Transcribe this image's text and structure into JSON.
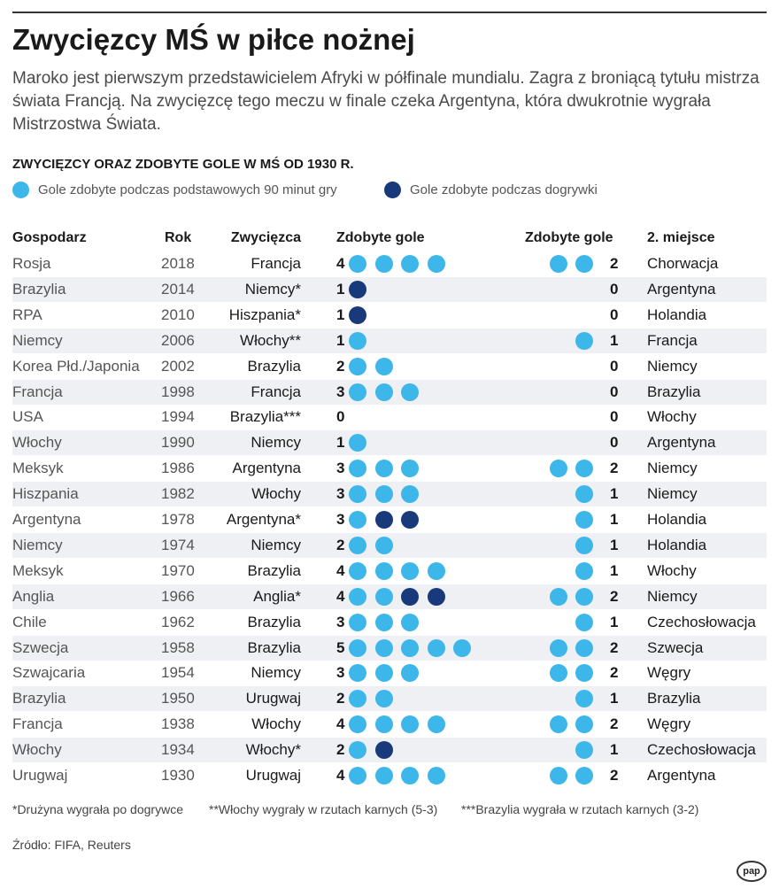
{
  "title": "Zwycięzcy MŚ w piłce nożnej",
  "intro": "Maroko jest pierwszym przedstawicielem Afryki w półfinale mundialu. Zagra z broniącą tytułu mistrza świata Francją. Na zwycięzcę tego meczu w finale czeka Argentyna, która dwukrotnie wygrała Mistrzostwa Świata.",
  "subtitle": "ZWYCIĘZCY ORAZ ZDOBYTE GOLE W MŚ OD 1930 R.",
  "legend": {
    "regular_label": "Gole zdobyte podczas podstawowych 90 minut gry",
    "extra_label": "Gole zdobyte podczas dogrywki"
  },
  "colors": {
    "regular": "#3db7ea",
    "extra": "#183a7a",
    "row_alt": "#eef0f4"
  },
  "headers": {
    "host": "Gospodarz",
    "year": "Rok",
    "winner": "Zwycięzca",
    "winner_goals": "Zdobyte gole",
    "loser_goals": "Zdobyte gole",
    "second": "2. miejsce"
  },
  "rows": [
    {
      "host": "Rosja",
      "year": "2018",
      "winner": "Francja",
      "wg": "4",
      "w_reg": 4,
      "w_ext": 0,
      "lg": "2",
      "l_reg": 2,
      "l_ext": 0,
      "second": "Chorwacja"
    },
    {
      "host": "Brazylia",
      "year": "2014",
      "winner": "Niemcy*",
      "wg": "1",
      "w_reg": 0,
      "w_ext": 1,
      "lg": "0",
      "l_reg": 0,
      "l_ext": 0,
      "second": "Argentyna"
    },
    {
      "host": "RPA",
      "year": "2010",
      "winner": "Hiszpania*",
      "wg": "1",
      "w_reg": 0,
      "w_ext": 1,
      "lg": "0",
      "l_reg": 0,
      "l_ext": 0,
      "second": "Holandia"
    },
    {
      "host": "Niemcy",
      "year": "2006",
      "winner": "Włochy**",
      "wg": "1",
      "w_reg": 1,
      "w_ext": 0,
      "lg": "1",
      "l_reg": 1,
      "l_ext": 0,
      "second": "Francja"
    },
    {
      "host": "Korea Płd./Japonia",
      "year": "2002",
      "winner": "Brazylia",
      "wg": "2",
      "w_reg": 2,
      "w_ext": 0,
      "lg": "0",
      "l_reg": 0,
      "l_ext": 0,
      "second": "Niemcy"
    },
    {
      "host": "Francja",
      "year": "1998",
      "winner": "Francja",
      "wg": "3",
      "w_reg": 3,
      "w_ext": 0,
      "lg": "0",
      "l_reg": 0,
      "l_ext": 0,
      "second": "Brazylia"
    },
    {
      "host": "USA",
      "year": "1994",
      "winner": "Brazylia***",
      "wg": "0",
      "w_reg": 0,
      "w_ext": 0,
      "lg": "0",
      "l_reg": 0,
      "l_ext": 0,
      "second": "Włochy"
    },
    {
      "host": "Włochy",
      "year": "1990",
      "winner": "Niemcy",
      "wg": "1",
      "w_reg": 1,
      "w_ext": 0,
      "lg": "0",
      "l_reg": 0,
      "l_ext": 0,
      "second": "Argentyna"
    },
    {
      "host": "Meksyk",
      "year": "1986",
      "winner": "Argentyna",
      "wg": "3",
      "w_reg": 3,
      "w_ext": 0,
      "lg": "2",
      "l_reg": 2,
      "l_ext": 0,
      "second": "Niemcy"
    },
    {
      "host": "Hiszpania",
      "year": "1982",
      "winner": "Włochy",
      "wg": "3",
      "w_reg": 3,
      "w_ext": 0,
      "lg": "1",
      "l_reg": 1,
      "l_ext": 0,
      "second": "Niemcy"
    },
    {
      "host": "Argentyna",
      "year": "1978",
      "winner": "Argentyna*",
      "wg": "3",
      "w_reg": 1,
      "w_ext": 2,
      "lg": "1",
      "l_reg": 1,
      "l_ext": 0,
      "second": "Holandia"
    },
    {
      "host": "Niemcy",
      "year": "1974",
      "winner": "Niemcy",
      "wg": "2",
      "w_reg": 2,
      "w_ext": 0,
      "lg": "1",
      "l_reg": 1,
      "l_ext": 0,
      "second": "Holandia"
    },
    {
      "host": "Meksyk",
      "year": "1970",
      "winner": "Brazylia",
      "wg": "4",
      "w_reg": 4,
      "w_ext": 0,
      "lg": "1",
      "l_reg": 1,
      "l_ext": 0,
      "second": "Włochy"
    },
    {
      "host": "Anglia",
      "year": "1966",
      "winner": "Anglia*",
      "wg": "4",
      "w_reg": 2,
      "w_ext": 2,
      "lg": "2",
      "l_reg": 2,
      "l_ext": 0,
      "second": "Niemcy"
    },
    {
      "host": "Chile",
      "year": "1962",
      "winner": "Brazylia",
      "wg": "3",
      "w_reg": 3,
      "w_ext": 0,
      "lg": "1",
      "l_reg": 1,
      "l_ext": 0,
      "second": "Czechosłowacja"
    },
    {
      "host": "Szwecja",
      "year": "1958",
      "winner": "Brazylia",
      "wg": "5",
      "w_reg": 5,
      "w_ext": 0,
      "lg": "2",
      "l_reg": 2,
      "l_ext": 0,
      "second": "Szwecja"
    },
    {
      "host": "Szwajcaria",
      "year": "1954",
      "winner": "Niemcy",
      "wg": "3",
      "w_reg": 3,
      "w_ext": 0,
      "lg": "2",
      "l_reg": 2,
      "l_ext": 0,
      "second": "Węgry"
    },
    {
      "host": "Brazylia",
      "year": "1950",
      "winner": "Urugwaj",
      "wg": "2",
      "w_reg": 2,
      "w_ext": 0,
      "lg": "1",
      "l_reg": 1,
      "l_ext": 0,
      "second": "Brazylia"
    },
    {
      "host": "Francja",
      "year": "1938",
      "winner": "Włochy",
      "wg": "4",
      "w_reg": 4,
      "w_ext": 0,
      "lg": "2",
      "l_reg": 2,
      "l_ext": 0,
      "second": "Węgry"
    },
    {
      "host": "Włochy",
      "year": "1934",
      "winner": "Włochy*",
      "wg": "2",
      "w_reg": 1,
      "w_ext": 1,
      "lg": "1",
      "l_reg": 1,
      "l_ext": 0,
      "second": "Czechosłowacja"
    },
    {
      "host": "Urugwaj",
      "year": "1930",
      "winner": "Urugwaj",
      "wg": "4",
      "w_reg": 4,
      "w_ext": 0,
      "lg": "2",
      "l_reg": 2,
      "l_ext": 0,
      "second": "Argentyna"
    }
  ],
  "footnotes": {
    "one": "*Drużyna wygrała po dogrywce",
    "two": "**Włochy wygrały w rzutach karnych (5-3)",
    "three": "***Brazylia wygrała w rzutach karnych (3-2)"
  },
  "source": "Źródło: FIFA, Reuters",
  "logo": "pap"
}
